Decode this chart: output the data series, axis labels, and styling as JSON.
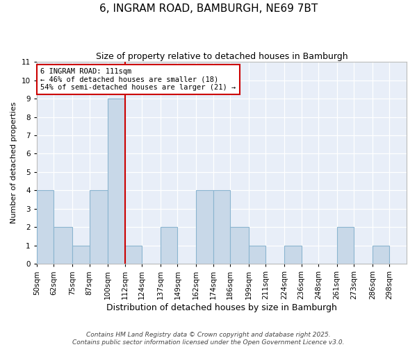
{
  "title": "6, INGRAM ROAD, BAMBURGH, NE69 7BT",
  "subtitle": "Size of property relative to detached houses in Bamburgh",
  "xlabel": "Distribution of detached houses by size in Bamburgh",
  "ylabel": "Number of detached properties",
  "bin_labels": [
    "50sqm",
    "62sqm",
    "75sqm",
    "87sqm",
    "100sqm",
    "112sqm",
    "124sqm",
    "137sqm",
    "149sqm",
    "162sqm",
    "174sqm",
    "186sqm",
    "199sqm",
    "211sqm",
    "224sqm",
    "236sqm",
    "248sqm",
    "261sqm",
    "273sqm",
    "286sqm",
    "298sqm"
  ],
  "bin_edges": [
    50,
    62,
    75,
    87,
    100,
    112,
    124,
    137,
    149,
    162,
    174,
    186,
    199,
    211,
    224,
    236,
    248,
    261,
    273,
    286,
    298
  ],
  "counts": [
    4,
    2,
    1,
    4,
    9,
    1,
    0,
    2,
    0,
    4,
    4,
    2,
    1,
    0,
    1,
    0,
    0,
    2,
    0,
    1,
    0
  ],
  "bar_color": "#c8d8e8",
  "bar_edge_color": "#8ab4d0",
  "property_line_x": 112,
  "property_line_color": "#cc0000",
  "annotation_text": "6 INGRAM ROAD: 111sqm\n← 46% of detached houses are smaller (18)\n54% of semi-detached houses are larger (21) →",
  "annotation_box_color": "white",
  "annotation_box_edge_color": "#cc0000",
  "ylim": [
    0,
    11
  ],
  "yticks": [
    0,
    1,
    2,
    3,
    4,
    5,
    6,
    7,
    8,
    9,
    10,
    11
  ],
  "background_color": "#e8eef8",
  "footer_line1": "Contains HM Land Registry data © Crown copyright and database right 2025.",
  "footer_line2": "Contains public sector information licensed under the Open Government Licence v3.0.",
  "title_fontsize": 11,
  "subtitle_fontsize": 9,
  "xlabel_fontsize": 9,
  "ylabel_fontsize": 8,
  "tick_fontsize": 7.5,
  "footer_fontsize": 6.5
}
